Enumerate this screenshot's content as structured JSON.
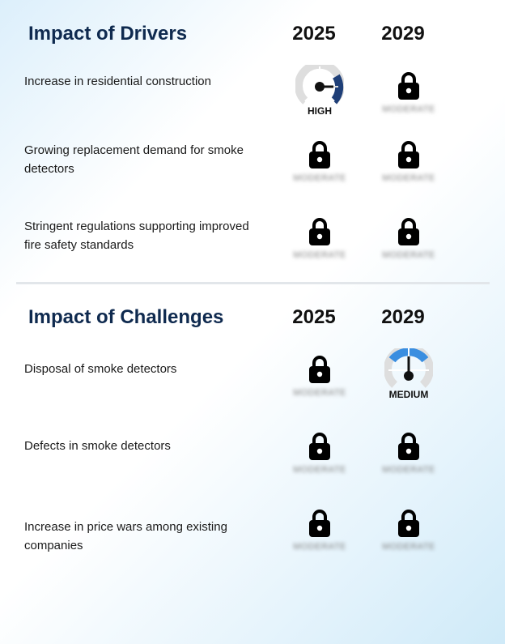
{
  "sections": [
    {
      "title": "Impact of Drivers",
      "years": [
        "2025",
        "2029"
      ],
      "rows": [
        {
          "label": "Increase in residential construction",
          "cells": [
            {
              "type": "gauge",
              "level": "HIGH"
            },
            {
              "type": "lock",
              "text": "MODERATE"
            }
          ]
        },
        {
          "label": "Growing replacement demand for smoke detectors",
          "cells": [
            {
              "type": "lock",
              "text": "MODERATE"
            },
            {
              "type": "lock",
              "text": "MODERATE"
            }
          ]
        },
        {
          "label": "Stringent regulations supporting improved fire safety standards",
          "cells": [
            {
              "type": "lock",
              "text": "MODERATE"
            },
            {
              "type": "lock",
              "text": "MODERATE"
            }
          ]
        }
      ]
    },
    {
      "title": "Impact of Challenges",
      "years": [
        "2025",
        "2029"
      ],
      "rows": [
        {
          "label": "Disposal of smoke detectors",
          "cells": [
            {
              "type": "lock",
              "text": "MODERATE"
            },
            {
              "type": "gauge",
              "level": "MEDIUM"
            }
          ]
        },
        {
          "label": "Defects in smoke detectors",
          "cells": [
            {
              "type": "lock",
              "text": "MODERATE"
            },
            {
              "type": "lock",
              "text": "MODERATE"
            }
          ]
        },
        {
          "label": "Increase in price wars among existing companies",
          "cells": [
            {
              "type": "lock",
              "text": "MODERATE"
            },
            {
              "type": "lock",
              "text": "MODERATE"
            }
          ]
        }
      ]
    }
  ],
  "colors": {
    "title": "#0f2a4f",
    "gauge_high": "#1f3f78",
    "gauge_medium": "#3a8ee0",
    "gauge_track": "#dedede"
  },
  "icons": {
    "lock": "lock-icon",
    "gauge": "gauge-icon"
  }
}
